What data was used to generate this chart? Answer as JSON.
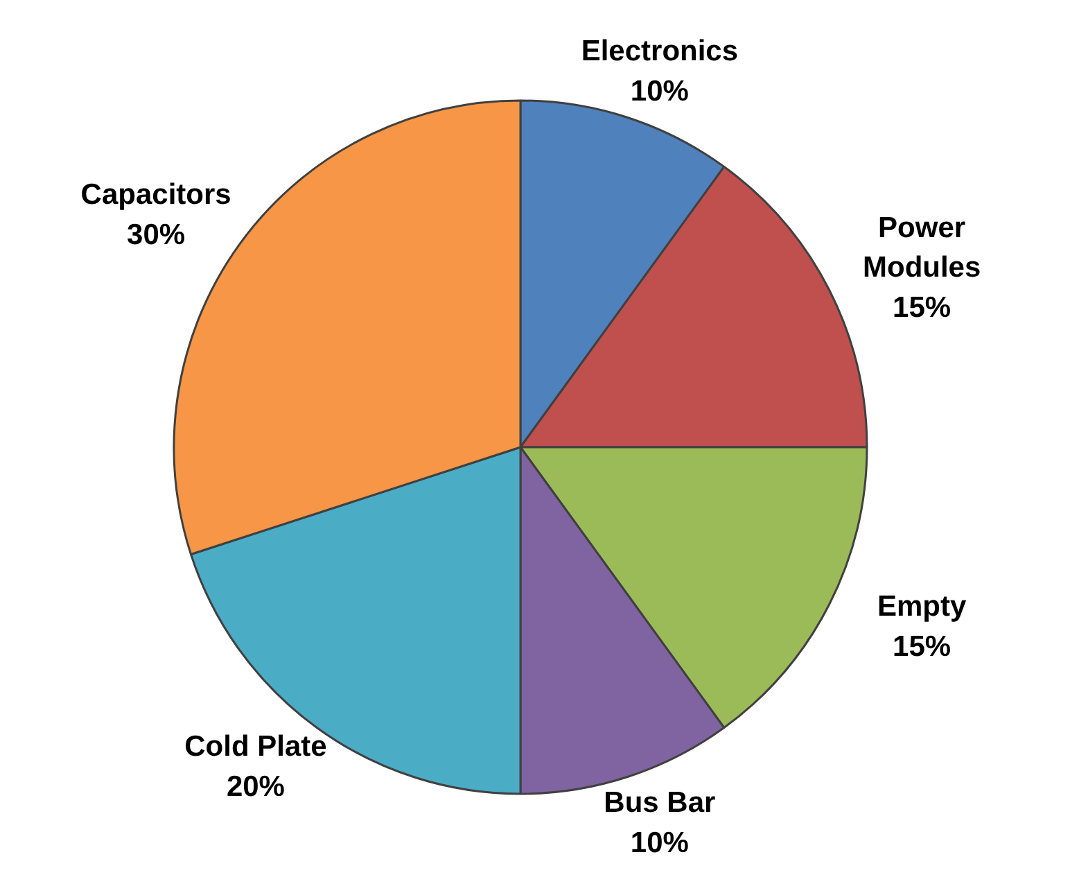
{
  "chart_data": {
    "type": "pie",
    "categories": [
      "Electronics",
      "Power Modules",
      "Empty",
      "Bus Bar",
      "Cold Plate",
      "Capacitors"
    ],
    "values": [
      10,
      15,
      15,
      10,
      20,
      30
    ],
    "colors": [
      "#4f81bd",
      "#c0504d",
      "#9bbb59",
      "#8064a2",
      "#4bacc6",
      "#f79646"
    ],
    "value_labels": [
      "10%",
      "15%",
      "15%",
      "10%",
      "20%",
      "30%"
    ]
  }
}
